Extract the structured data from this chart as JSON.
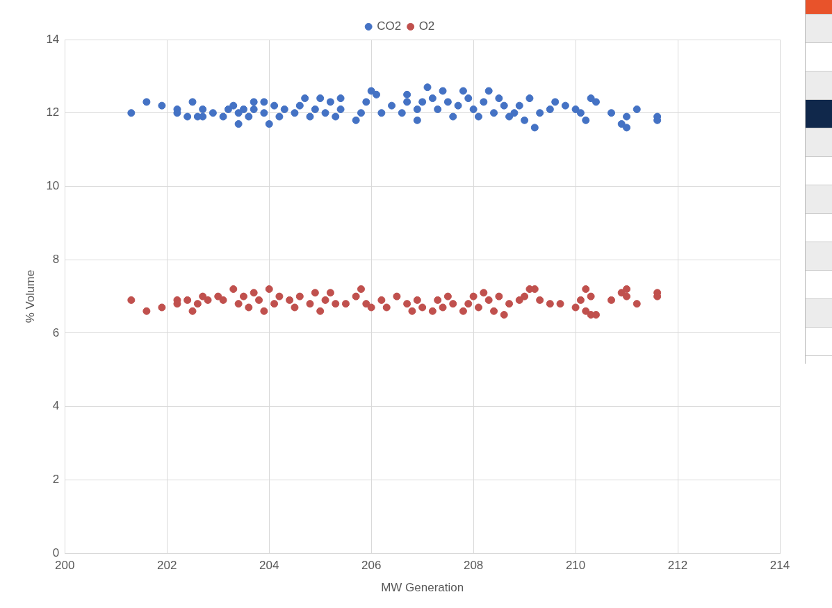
{
  "chart_data": {
    "type": "scatter",
    "xlabel": "MW Generation",
    "ylabel": "% Volume",
    "xlim": [
      200,
      214
    ],
    "xticks": [
      200,
      202,
      204,
      206,
      208,
      210,
      212,
      214
    ],
    "ylim": [
      0,
      14
    ],
    "yticks": [
      0,
      2,
      4,
      6,
      8,
      10,
      12,
      14
    ],
    "grid": true,
    "legend": "top",
    "marker": "circle",
    "series": [
      {
        "name": "CO2",
        "color": "#4472c4",
        "x": [
          201.3,
          201.6,
          201.9,
          202.2,
          202.2,
          202.5,
          202.4,
          202.6,
          202.7,
          202.7,
          202.9,
          203.1,
          203.2,
          203.3,
          203.4,
          203.4,
          203.5,
          203.6,
          203.7,
          203.7,
          203.9,
          203.9,
          204.0,
          204.1,
          204.2,
          204.3,
          204.5,
          204.6,
          204.7,
          204.8,
          204.9,
          205.0,
          205.1,
          205.2,
          205.3,
          205.4,
          205.4,
          205.7,
          205.8,
          205.9,
          206.0,
          206.1,
          206.2,
          206.4,
          206.6,
          206.7,
          206.7,
          206.9,
          206.9,
          207.0,
          207.1,
          207.2,
          207.3,
          207.4,
          207.5,
          207.6,
          207.7,
          207.8,
          207.9,
          208.0,
          208.1,
          208.2,
          208.3,
          208.4,
          208.5,
          208.6,
          208.7,
          208.8,
          208.9,
          209.0,
          209.1,
          209.2,
          209.3,
          209.5,
          209.6,
          209.8,
          210.0,
          210.1,
          210.2,
          210.3,
          210.4,
          210.7,
          210.9,
          211.0,
          211.0,
          211.2,
          211.6,
          211.6
        ],
        "values": [
          12.0,
          12.3,
          12.2,
          12.1,
          12.0,
          12.3,
          11.9,
          11.9,
          11.9,
          12.1,
          12.0,
          11.9,
          12.1,
          12.2,
          11.7,
          12.0,
          12.1,
          11.9,
          12.1,
          12.3,
          12.0,
          12.3,
          11.7,
          12.2,
          11.9,
          12.1,
          12.0,
          12.2,
          12.4,
          11.9,
          12.1,
          12.4,
          12.0,
          12.3,
          11.9,
          12.4,
          12.1,
          11.8,
          12.0,
          12.3,
          12.6,
          12.5,
          12.0,
          12.2,
          12.0,
          12.3,
          12.5,
          11.8,
          12.1,
          12.3,
          12.7,
          12.4,
          12.1,
          12.6,
          12.3,
          11.9,
          12.2,
          12.6,
          12.4,
          12.1,
          11.9,
          12.3,
          12.6,
          12.0,
          12.4,
          12.2,
          11.9,
          12.0,
          12.2,
          11.8,
          12.4,
          11.6,
          12.0,
          12.1,
          12.3,
          12.2,
          12.1,
          12.0,
          11.8,
          12.4,
          12.3,
          12.0,
          11.7,
          11.6,
          11.9,
          12.1,
          11.9,
          11.8
        ]
      },
      {
        "name": "O2",
        "color": "#c0504d",
        "x": [
          201.3,
          201.6,
          201.9,
          202.2,
          202.2,
          202.4,
          202.5,
          202.6,
          202.7,
          202.8,
          203.0,
          203.1,
          203.3,
          203.4,
          203.5,
          203.6,
          203.7,
          203.8,
          203.9,
          204.0,
          204.1,
          204.2,
          204.4,
          204.5,
          204.6,
          204.8,
          204.9,
          205.0,
          205.1,
          205.2,
          205.3,
          205.5,
          205.7,
          205.8,
          205.9,
          206.0,
          206.2,
          206.3,
          206.5,
          206.7,
          206.8,
          206.9,
          207.0,
          207.2,
          207.3,
          207.4,
          207.5,
          207.6,
          207.8,
          207.9,
          208.0,
          208.1,
          208.2,
          208.3,
          208.4,
          208.5,
          208.6,
          208.7,
          208.9,
          209.0,
          209.1,
          209.2,
          209.3,
          209.5,
          209.7,
          210.0,
          210.1,
          210.2,
          210.2,
          210.3,
          210.3,
          210.4,
          210.7,
          210.9,
          211.0,
          211.0,
          211.2,
          211.6,
          211.6
        ],
        "values": [
          6.9,
          6.6,
          6.7,
          6.9,
          6.8,
          6.9,
          6.6,
          6.8,
          7.0,
          6.9,
          7.0,
          6.9,
          7.2,
          6.8,
          7.0,
          6.7,
          7.1,
          6.9,
          6.6,
          7.2,
          6.8,
          7.0,
          6.9,
          6.7,
          7.0,
          6.8,
          7.1,
          6.6,
          6.9,
          7.1,
          6.8,
          6.8,
          7.0,
          7.2,
          6.8,
          6.7,
          6.9,
          6.7,
          7.0,
          6.8,
          6.6,
          6.9,
          6.7,
          6.6,
          6.9,
          6.7,
          7.0,
          6.8,
          6.6,
          6.8,
          7.0,
          6.7,
          7.1,
          6.9,
          6.6,
          7.0,
          6.5,
          6.8,
          6.9,
          7.0,
          7.2,
          7.2,
          6.9,
          6.8,
          6.8,
          6.7,
          6.9,
          7.2,
          6.6,
          7.0,
          6.5,
          6.5,
          6.9,
          7.1,
          7.2,
          7.0,
          6.8,
          7.1,
          7.0
        ]
      }
    ]
  }
}
